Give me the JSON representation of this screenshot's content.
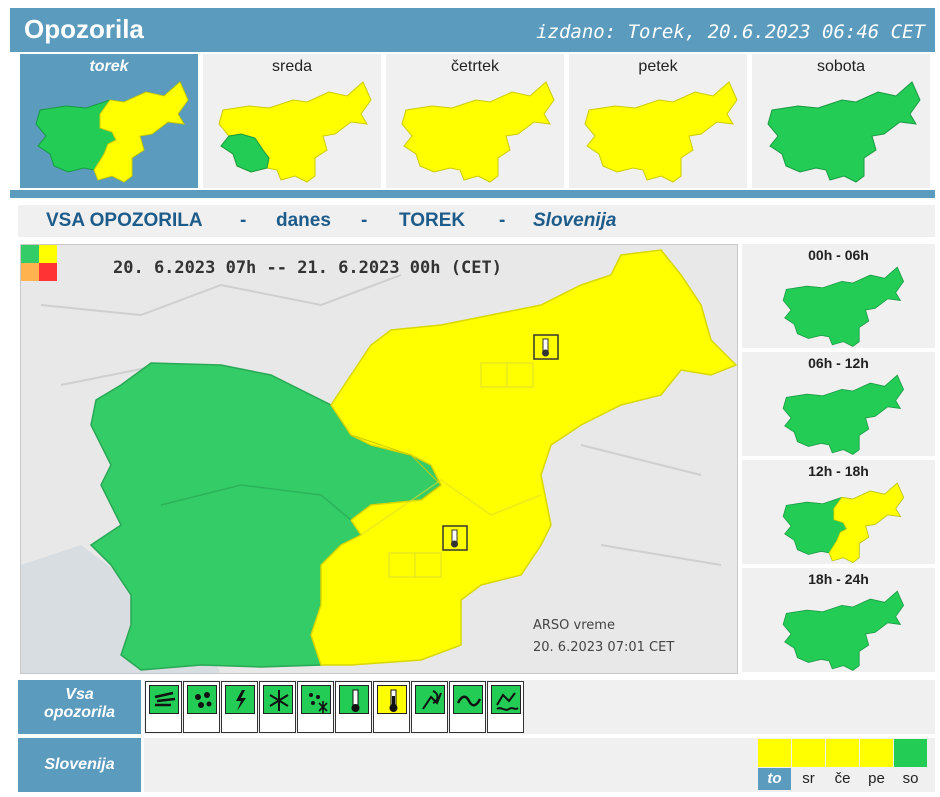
{
  "header": {
    "title": "Opozorila",
    "issued": "izdano: Torek, 20.6.2023 06:46 CET"
  },
  "days": [
    {
      "label": "torek",
      "active": true
    },
    {
      "label": "sreda",
      "active": false
    },
    {
      "label": "četrtek",
      "active": false
    },
    {
      "label": "petek",
      "active": false
    },
    {
      "label": "sobota",
      "active": false
    }
  ],
  "subtitle": {
    "all": "VSA OPOZORILA",
    "today": "danes",
    "day": "TOREK",
    "region": "Slovenija",
    "dash": "-"
  },
  "map": {
    "period": "20. 6.2023  07h  --  21. 6.2023  00h    (CET)",
    "credit_line1": "ARSO vreme",
    "credit_line2": "20. 6.2023  07:01 CET"
  },
  "slots": [
    {
      "label": "00h - 06h"
    },
    {
      "label": "06h - 12h"
    },
    {
      "label": "12h - 18h"
    },
    {
      "label": "18h - 24h"
    }
  ],
  "rows": {
    "all_line1": "Vsa",
    "all_line2": "opozorila",
    "slovenia": "Slovenija"
  },
  "warning_icons": [
    "wind-icon",
    "rain-icon",
    "thunderstorm-icon",
    "snow-icon",
    "fog-icon",
    "low-temperature-icon",
    "high-temperature-icon",
    "fire-icon",
    "coastal-wind-icon",
    "flood-icon"
  ],
  "week": [
    {
      "label": "to",
      "active": true,
      "color": "#ffff00"
    },
    {
      "label": "sr",
      "active": false,
      "color": "#ffff00"
    },
    {
      "label": "če",
      "active": false,
      "color": "#ffff00"
    },
    {
      "label": "pe",
      "active": false,
      "color": "#ffff00"
    },
    {
      "label": "so",
      "active": false,
      "color": "#22cc55"
    }
  ],
  "colors": {
    "accent": "#5b9bbd",
    "green": "#33cc66",
    "yellow": "#ffff00",
    "panel": "#f0f0f0"
  }
}
